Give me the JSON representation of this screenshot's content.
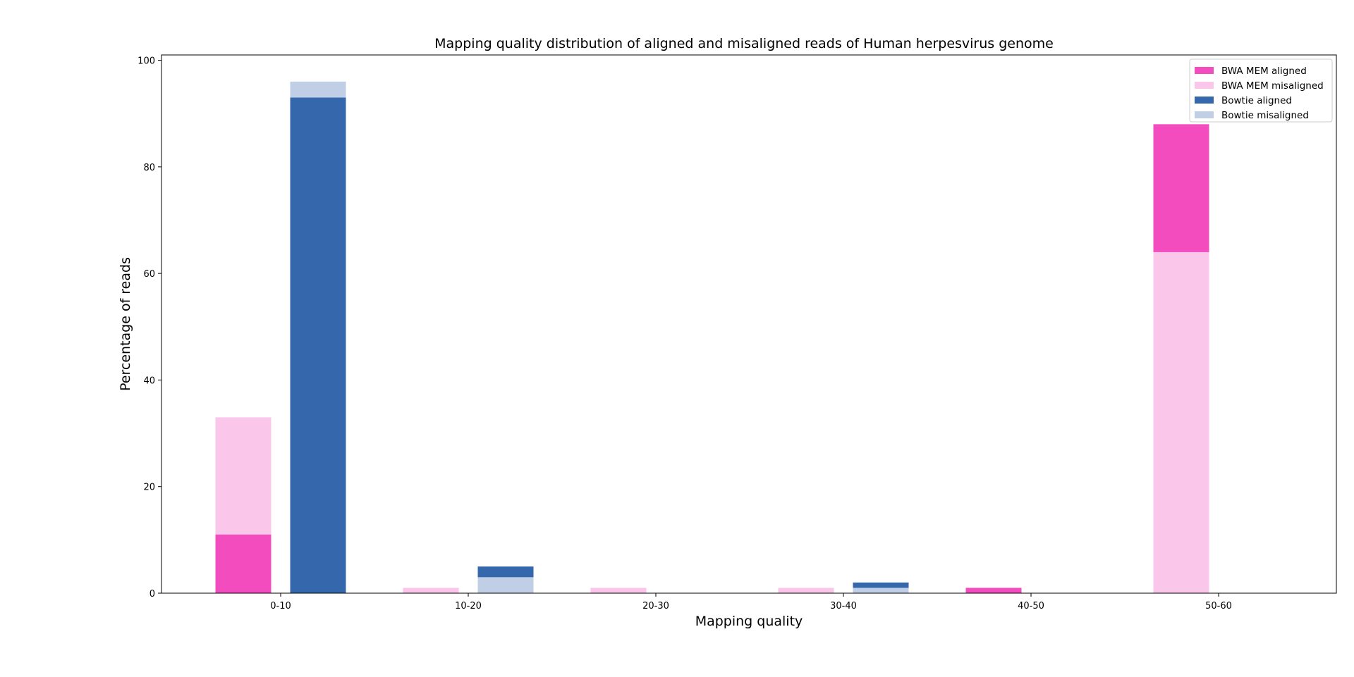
{
  "chart_data": {
    "type": "bar",
    "title": "Mapping quality distribution of aligned and misaligned reads of Human herpesvirus genome",
    "xlabel": "Mapping quality",
    "ylabel": "Percentage of reads",
    "categories": [
      "0-10",
      "10-20",
      "20-30",
      "30-40",
      "40-50",
      "50-60"
    ],
    "ylim": [
      0,
      101
    ],
    "yticks": [
      0,
      20,
      40,
      60,
      80,
      100
    ],
    "grid": false,
    "legend_position": "top-right",
    "groups": [
      {
        "name": "BWA MEM",
        "aligned": [
          11,
          0,
          0,
          0,
          1,
          88
        ],
        "misaligned": [
          33,
          1,
          1,
          1,
          0,
          64
        ],
        "aligned_color": "#f24cbf",
        "misaligned_color": "#fac6ea"
      },
      {
        "name": "Bowtie",
        "aligned": [
          93,
          5,
          0,
          2,
          0,
          0
        ],
        "misaligned": [
          96,
          3,
          0,
          1,
          0,
          0
        ],
        "aligned_color": "#3567ac",
        "misaligned_color": "#c0cfe6"
      }
    ],
    "legend": [
      {
        "label": "BWA MEM aligned",
        "color": "#f24cbf"
      },
      {
        "label": "BWA MEM misaligned",
        "color": "#fac6ea"
      },
      {
        "label": "Bowtie aligned",
        "color": "#3567ac"
      },
      {
        "label": "Bowtie misaligned",
        "color": "#c0cfe6"
      }
    ]
  }
}
